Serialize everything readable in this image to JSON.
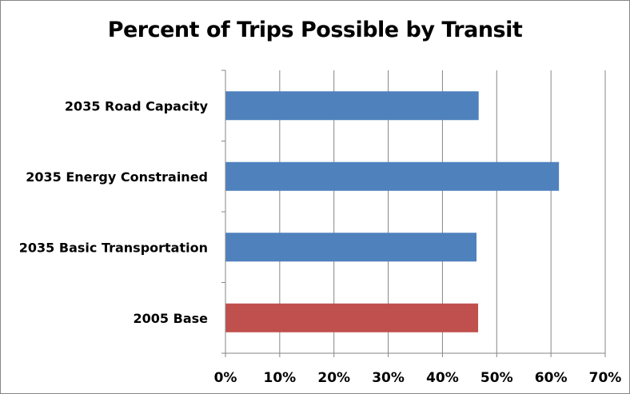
{
  "chart_data": {
    "type": "bar",
    "orientation": "horizontal",
    "title": "Percent of Trips Possible by Transit",
    "categories": [
      "2035 Road Capacity",
      "2035 Energy Constrained",
      "2035 Basic Transportation",
      "2005 Base"
    ],
    "values": [
      0.466,
      0.614,
      0.462,
      0.465
    ],
    "bar_colors": [
      "#4F81BD",
      "#4F81BD",
      "#4F81BD",
      "#C0504D"
    ],
    "xlabel": "",
    "ylabel": "",
    "xlim": [
      0,
      0.7
    ],
    "x_ticks": [
      "0%",
      "10%",
      "20%",
      "30%",
      "40%",
      "50%",
      "60%",
      "70%"
    ],
    "grid": "vertical major gridlines",
    "legend": "none"
  }
}
